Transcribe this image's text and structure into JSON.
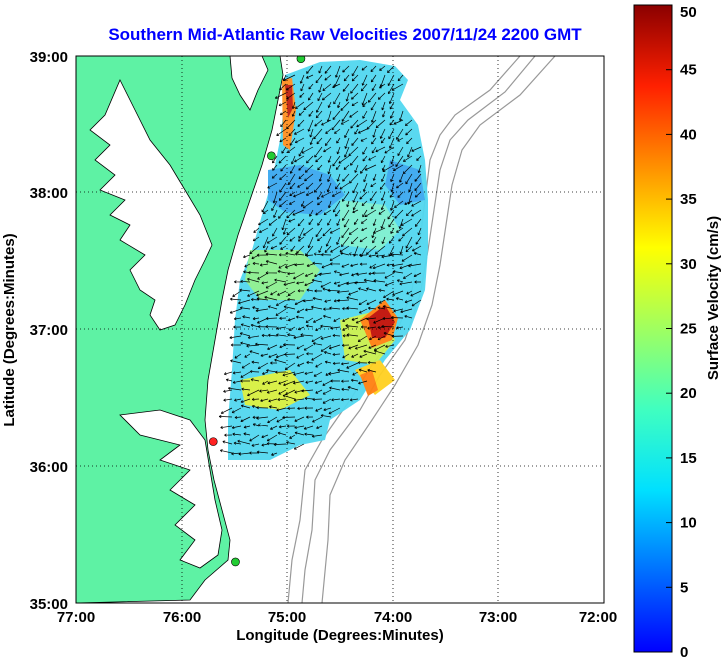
{
  "title": "Southern Mid-Atlantic Raw Velocities 2007/11/24 2200 GMT",
  "x_axis": {
    "label": "Longitude (Degrees:Minutes)",
    "ticks": [
      "77:00",
      "76:00",
      "75:00",
      "74:00",
      "73:00",
      "72:00"
    ]
  },
  "y_axis": {
    "label": "Latitude (Degrees:Minutes)",
    "ticks": [
      "39:00",
      "38:00",
      "37:00",
      "36:00",
      "35:00"
    ]
  },
  "colorbar": {
    "label": "Surface Velocity (cm/s)",
    "ticks": [
      "50",
      "45",
      "40",
      "35",
      "30",
      "25",
      "20",
      "15",
      "10",
      "5",
      "0"
    ],
    "min": 0,
    "max": 50
  },
  "map": {
    "lon_range": [
      -77,
      -72
    ],
    "lat_range": [
      35,
      39
    ],
    "grid": true,
    "land_color": "#5ef2a4",
    "water_color": "#ffffff",
    "stations": [
      {
        "lon": -74.87,
        "lat": 38.98,
        "color": "#22cc33"
      },
      {
        "lon": -75.15,
        "lat": 38.27,
        "color": "#22cc33"
      },
      {
        "lon": -75.7,
        "lat": 36.18,
        "color": "#ff2222"
      },
      {
        "lon": -75.49,
        "lat": 35.3,
        "color": "#22cc33"
      }
    ]
  }
}
